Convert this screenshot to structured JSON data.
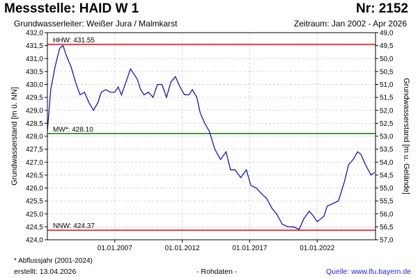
{
  "header": {
    "title": "Messstelle: HAID W 1",
    "nr": "Nr: 2152",
    "aquifer": "Grundwasserleiter:  Weißer Jura / Malmkarst",
    "period": "Zeitraum: Jan 2002 - Apr 2026"
  },
  "footer": {
    "note": "* Abflussjahr (2001-2024)",
    "created": "erstellt:  13.04.2026",
    "rawdata": "- Rohdaten -",
    "source": "Quelle:  www.lfu.bayern.de"
  },
  "colors": {
    "series": "#0000cc",
    "hhw": "#ff0000",
    "nnw": "#ff0000",
    "mw": "#008000",
    "grid": "#c8c8c8"
  },
  "chart_data": {
    "type": "line",
    "ylabel": "Grundwasserstand [m ü. NN]",
    "ylabel_right": "Grundwasserstand [m u. Gelände]",
    "xlim": [
      "2002-01-01",
      "2026-04-30"
    ],
    "ylim": [
      424.0,
      432.0
    ],
    "ylim_right": [
      57.0,
      49.0
    ],
    "grid": true,
    "x_ticks": [
      "2007-01-01",
      "2012-01-01",
      "2017-01-01",
      "2022-01-01"
    ],
    "x_tick_labels": [
      "01.01.2007",
      "01.01.2012",
      "01.01.2017",
      "01.01.2022"
    ],
    "y_ticks": [
      424.0,
      424.5,
      425.0,
      425.5,
      426.0,
      426.5,
      427.0,
      427.5,
      428.0,
      428.5,
      429.0,
      429.5,
      430.0,
      430.5,
      431.0,
      431.5,
      432.0
    ],
    "y_tick_labels": [
      "424,0",
      "424,5",
      "425,0",
      "425,5",
      "426,0",
      "426,5",
      "427,0",
      "427,5",
      "428,0",
      "428,5",
      "429,0",
      "429,5",
      "430,0",
      "430,5",
      "431,0",
      "431,5",
      "432,0"
    ],
    "y_right_ticks": [
      57.0,
      56.5,
      56.0,
      55.5,
      55.0,
      54.5,
      54.0,
      53.5,
      53.0,
      52.5,
      52.0,
      51.5,
      51.0,
      50.5,
      50.0,
      49.5,
      49.0
    ],
    "y_right_tick_labels": [
      "57,0",
      "56,5",
      "56,0",
      "55,5",
      "55,0",
      "54,5",
      "54,0",
      "53,5",
      "53,0",
      "52,5",
      "52,0",
      "51,5",
      "51,0",
      "50,5",
      "50,0",
      "49,5",
      "49,0"
    ],
    "reference_lines": [
      {
        "label": "HHW: 431.55",
        "value": 431.55
      },
      {
        "label": "MW*: 428.10",
        "value": 428.1
      },
      {
        "label": "NNW: 424.37",
        "value": 424.37
      }
    ],
    "series": [
      {
        "x": [
          "2002-01-01",
          "2002-04-01",
          "2002-08-01",
          "2002-12-01",
          "2003-03-01",
          "2003-06-01",
          "2003-10-01",
          "2004-02-01",
          "2004-06-01",
          "2004-10-01",
          "2005-02-01",
          "2005-06-01",
          "2005-10-01",
          "2006-01-01",
          "2006-05-01",
          "2006-09-01",
          "2007-01-01",
          "2007-04-01",
          "2007-07-01",
          "2007-11-01",
          "2008-03-01",
          "2008-06-01",
          "2008-09-01",
          "2008-12-01",
          "2009-03-01",
          "2009-07-01",
          "2009-11-01",
          "2010-03-01",
          "2010-07-01",
          "2010-11-01",
          "2011-03-01",
          "2011-07-01",
          "2011-11-01",
          "2012-03-01",
          "2012-07-01",
          "2012-10-01",
          "2013-02-01",
          "2013-05-01",
          "2013-09-01",
          "2014-01-01",
          "2014-06-01",
          "2014-11-01",
          "2015-04-01",
          "2015-08-01",
          "2015-12-01",
          "2016-05-01",
          "2016-10-01",
          "2017-02-01",
          "2017-07-01",
          "2017-11-01",
          "2018-04-01",
          "2018-09-01",
          "2019-01-01",
          "2019-06-01",
          "2019-11-01",
          "2020-04-01",
          "2020-09-01",
          "2021-01-01",
          "2021-06-01",
          "2021-10-01",
          "2022-01-01",
          "2022-04-01",
          "2022-07-01",
          "2022-10-01",
          "2023-03-01",
          "2023-08-01",
          "2024-01-01",
          "2024-05-01",
          "2024-09-01",
          "2025-01-01",
          "2025-04-01",
          "2025-08-01",
          "2026-01-01",
          "2026-04-01"
        ],
        "y": [
          428.2,
          429.8,
          430.7,
          431.4,
          431.5,
          431.1,
          430.7,
          430.1,
          429.6,
          429.7,
          429.3,
          429.0,
          429.3,
          429.7,
          429.8,
          429.7,
          429.7,
          429.9,
          429.6,
          430.1,
          430.6,
          430.4,
          430.2,
          429.8,
          429.6,
          429.7,
          429.5,
          430.0,
          430.0,
          429.5,
          430.1,
          430.3,
          429.9,
          429.6,
          429.6,
          429.8,
          429.5,
          428.9,
          428.5,
          428.2,
          427.5,
          427.1,
          427.4,
          426.7,
          426.7,
          426.4,
          426.7,
          426.1,
          426.0,
          425.8,
          425.6,
          425.2,
          425.0,
          424.6,
          424.5,
          424.5,
          424.4,
          424.8,
          425.1,
          424.9,
          424.7,
          424.8,
          424.9,
          425.3,
          425.4,
          425.5,
          426.2,
          426.9,
          427.1,
          427.4,
          427.3,
          426.9,
          426.5,
          426.6
        ]
      }
    ]
  }
}
